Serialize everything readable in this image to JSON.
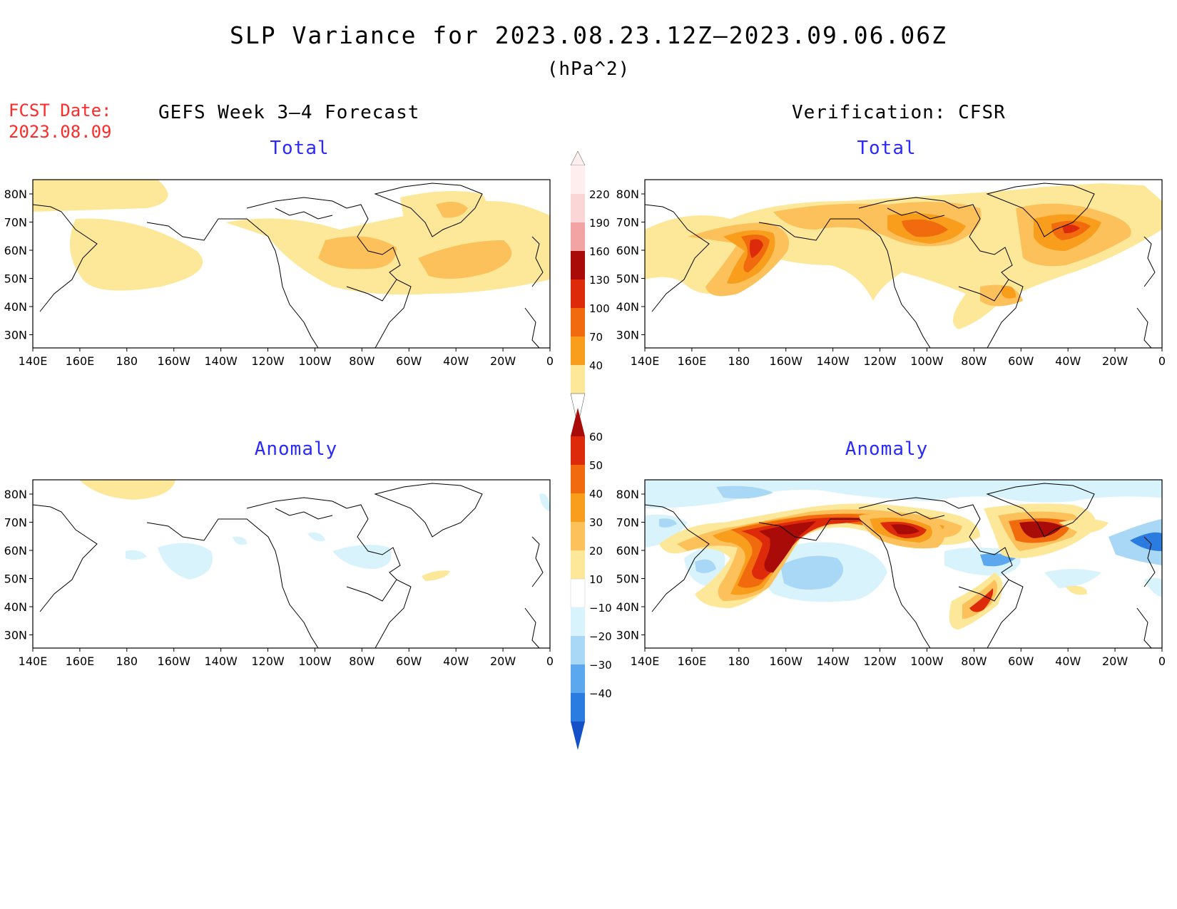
{
  "title": "SLP Variance for 2023.08.23.12Z–2023.09.06.06Z",
  "units": "(hPa^2)",
  "fcst_label": "FCST Date:",
  "fcst_date": "2023.08.09",
  "left_header": "GEFS Week 3–4 Forecast",
  "right_header": "Verification: CFSR",
  "panel_titles": {
    "total": "Total",
    "anomaly": "Anomaly"
  },
  "lat_labels": [
    "80N",
    "70N",
    "60N",
    "50N",
    "40N",
    "30N"
  ],
  "lon_labels": [
    "140E",
    "160E",
    "180",
    "160W",
    "140W",
    "120W",
    "100W",
    "80W",
    "60W",
    "40W",
    "20W",
    "0"
  ],
  "total_colorbar": {
    "levels": [
      "40",
      "70",
      "100",
      "130",
      "160",
      "190",
      "220"
    ],
    "colors": [
      "#fde89a",
      "#fcc15a",
      "#f99d1c",
      "#f26a0e",
      "#dd2a0a",
      "#a80b08",
      "#f2a3a3",
      "#fbd6d6",
      "#ffeeee"
    ]
  },
  "anomaly_colorbar": {
    "levels": [
      "60",
      "50",
      "40",
      "30",
      "20",
      "10",
      "−10",
      "−20",
      "−30",
      "−40"
    ],
    "colors": [
      "#a80b08",
      "#dd2a0a",
      "#f26a0e",
      "#f99d1c",
      "#fcc15a",
      "#fde89a",
      "#ffffff",
      "#d8f3fb",
      "#a8d8f5",
      "#5ba8ef",
      "#2a7ce0",
      "#1550c8"
    ]
  },
  "map_data": {
    "projection": "cylindrical equidistant",
    "lon_range": [
      "140E",
      "0"
    ],
    "lat_range": [
      "25N",
      "85N"
    ],
    "panels": [
      {
        "id": "gefs-total",
        "field": "total",
        "range_hPa2": "40-100",
        "max_regions": [
          "Hudson Bay",
          "central North Atlantic"
        ]
      },
      {
        "id": "cfsr-total",
        "field": "total",
        "range_hPa2": "40-160",
        "max_regions": [
          "Bering Sea / Gulf of Alaska",
          "Hudson Bay",
          "southern Greenland"
        ]
      },
      {
        "id": "gefs-anomaly",
        "field": "anomaly",
        "range_hPa2": "-20-10",
        "max_regions": []
      },
      {
        "id": "cfsr-anomaly",
        "field": "anomaly",
        "range_hPa2": "-40-60",
        "max_regions": [
          "Bering Sea / Gulf of Alaska",
          "Canadian Arctic",
          "Hudson Bay",
          "south of Greenland"
        ]
      }
    ]
  }
}
